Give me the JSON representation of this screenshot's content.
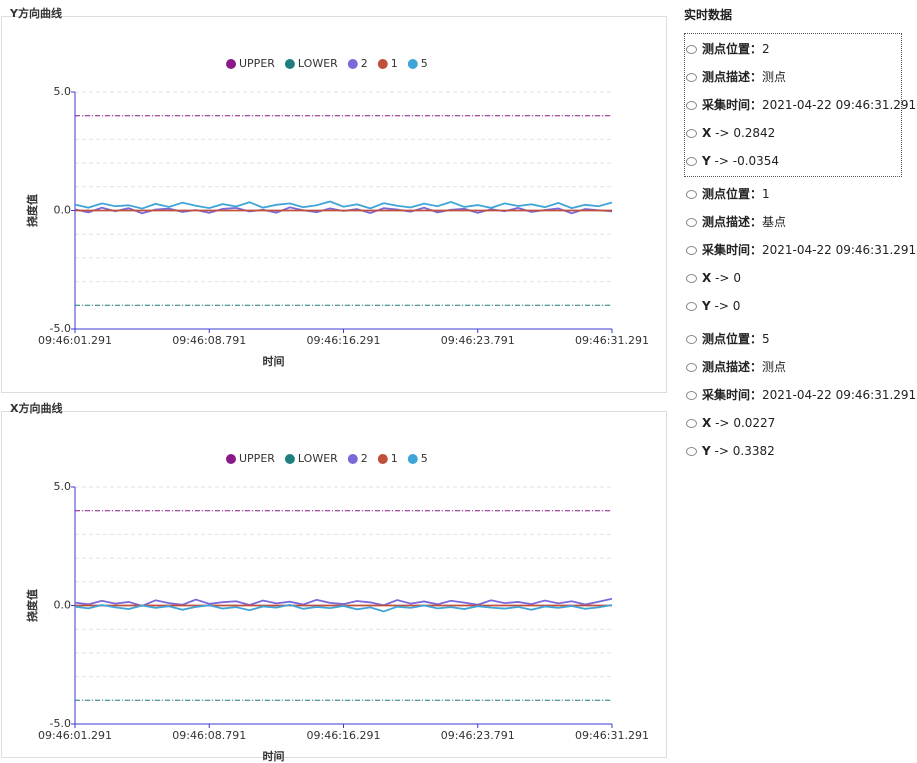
{
  "chart_data": [
    {
      "type": "line",
      "title": "Y方向曲线",
      "ylabel": "挠度值",
      "xlabel": "时间",
      "categories": [
        "09:46:01.291",
        null,
        null,
        null,
        null,
        null,
        null,
        null,
        null,
        null,
        "09:46:08.791",
        null,
        null,
        null,
        null,
        null,
        null,
        null,
        null,
        null,
        "09:46:16.291",
        null,
        null,
        null,
        null,
        null,
        null,
        null,
        null,
        null,
        "09:46:23.791",
        null,
        null,
        null,
        null,
        null,
        null,
        null,
        null,
        null,
        "09:46:31.291"
      ],
      "ylim": [
        -5,
        5
      ],
      "yticks": [
        {
          "value": -5,
          "label": "-5.0"
        },
        {
          "value": 0,
          "label": "0.0"
        },
        {
          "value": 5,
          "label": "5.0"
        }
      ],
      "minor_yticks": [
        -4,
        -3,
        -2,
        -1,
        1,
        2,
        3,
        4
      ],
      "grid": true,
      "series": [
        {
          "name": "UPPER",
          "color": "#8a1a8a",
          "style": "dash-dot",
          "values": [
            4,
            4,
            4,
            4,
            4,
            4,
            4,
            4,
            4,
            4,
            4,
            4,
            4,
            4,
            4,
            4,
            4,
            4,
            4,
            4,
            4,
            4,
            4,
            4,
            4,
            4,
            4,
            4,
            4,
            4,
            4,
            4,
            4,
            4,
            4,
            4,
            4,
            4,
            4,
            4,
            4
          ]
        },
        {
          "name": "LOWER",
          "color": "#1f7f7f",
          "style": "dash-dot",
          "values": [
            -4,
            -4,
            -4,
            -4,
            -4,
            -4,
            -4,
            -4,
            -4,
            -4,
            -4,
            -4,
            -4,
            -4,
            -4,
            -4,
            -4,
            -4,
            -4,
            -4,
            -4,
            -4,
            -4,
            -4,
            -4,
            -4,
            -4,
            -4,
            -4,
            -4,
            -4,
            -4,
            -4,
            -4,
            -4,
            -4,
            -4,
            -4,
            -4,
            -4,
            -4
          ]
        },
        {
          "name": "2",
          "color": "#7b68d8",
          "values": [
            0.05,
            -0.08,
            0.12,
            -0.03,
            0.1,
            -0.12,
            0.04,
            0.08,
            -0.06,
            0.02,
            -0.1,
            0.07,
            0.11,
            -0.04,
            0.03,
            -0.09,
            0.13,
            0.01,
            -0.07,
            0.09,
            -0.02,
            0.06,
            -0.11,
            0.1,
            0.04,
            -0.05,
            0.12,
            -0.08,
            0.03,
            0.07,
            -0.1,
            0.05,
            -0.03,
            0.11,
            -0.06,
            0.02,
            0.09,
            -0.12,
            0.06,
            0.01,
            -0.0354
          ]
        },
        {
          "name": "1",
          "color": "#c0503c",
          "values": [
            0,
            0,
            0,
            0,
            0,
            0,
            0,
            0,
            0,
            0,
            0,
            0,
            0,
            0,
            0,
            0,
            0,
            0,
            0,
            0,
            0,
            0,
            0,
            0,
            0,
            0,
            0,
            0,
            0,
            0,
            0,
            0,
            0,
            0,
            0,
            0,
            0,
            0,
            0,
            0,
            0
          ]
        },
        {
          "name": "5",
          "color": "#3fa5d8",
          "values": [
            0.25,
            0.12,
            0.3,
            0.18,
            0.22,
            0.08,
            0.28,
            0.15,
            0.33,
            0.2,
            0.1,
            0.27,
            0.17,
            0.35,
            0.12,
            0.24,
            0.3,
            0.14,
            0.22,
            0.38,
            0.16,
            0.26,
            0.09,
            0.31,
            0.2,
            0.13,
            0.29,
            0.18,
            0.36,
            0.15,
            0.23,
            0.11,
            0.3,
            0.19,
            0.26,
            0.14,
            0.32,
            0.1,
            0.24,
            0.18,
            0.3382
          ]
        }
      ]
    },
    {
      "type": "line",
      "title": "X方向曲线",
      "ylabel": "挠度值",
      "xlabel": "时间",
      "categories": [
        "09:46:01.291",
        null,
        null,
        null,
        null,
        null,
        null,
        null,
        null,
        null,
        "09:46:08.791",
        null,
        null,
        null,
        null,
        null,
        null,
        null,
        null,
        null,
        "09:46:16.291",
        null,
        null,
        null,
        null,
        null,
        null,
        null,
        null,
        null,
        "09:46:23.791",
        null,
        null,
        null,
        null,
        null,
        null,
        null,
        null,
        null,
        "09:46:31.291"
      ],
      "ylim": [
        -5,
        5
      ],
      "yticks": [
        {
          "value": -5,
          "label": "-5.0"
        },
        {
          "value": 0,
          "label": "0.0"
        },
        {
          "value": 5,
          "label": "5.0"
        }
      ],
      "minor_yticks": [
        -4,
        -3,
        -2,
        -1,
        1,
        2,
        3,
        4
      ],
      "grid": true,
      "series": [
        {
          "name": "UPPER",
          "color": "#8a1a8a",
          "style": "dash-dot",
          "values": [
            4,
            4,
            4,
            4,
            4,
            4,
            4,
            4,
            4,
            4,
            4,
            4,
            4,
            4,
            4,
            4,
            4,
            4,
            4,
            4,
            4,
            4,
            4,
            4,
            4,
            4,
            4,
            4,
            4,
            4,
            4,
            4,
            4,
            4,
            4,
            4,
            4,
            4,
            4,
            4,
            4
          ]
        },
        {
          "name": "LOWER",
          "color": "#1f7f7f",
          "style": "dash-dot",
          "values": [
            -4,
            -4,
            -4,
            -4,
            -4,
            -4,
            -4,
            -4,
            -4,
            -4,
            -4,
            -4,
            -4,
            -4,
            -4,
            -4,
            -4,
            -4,
            -4,
            -4,
            -4,
            -4,
            -4,
            -4,
            -4,
            -4,
            -4,
            -4,
            -4,
            -4,
            -4,
            -4,
            -4,
            -4,
            -4,
            -4,
            -4,
            -4,
            -4,
            -4,
            -4
          ]
        },
        {
          "name": "2",
          "color": "#7b68d8",
          "values": [
            0.12,
            0.05,
            0.2,
            0.08,
            0.15,
            -0.02,
            0.22,
            0.1,
            0.03,
            0.25,
            0.07,
            0.14,
            0.18,
            0.02,
            0.21,
            0.09,
            0.16,
            0.04,
            0.24,
            0.11,
            0.06,
            0.19,
            0.13,
            0.01,
            0.23,
            0.08,
            0.17,
            0.05,
            0.2,
            0.12,
            0.03,
            0.22,
            0.1,
            0.15,
            0.06,
            0.21,
            0.09,
            0.18,
            0.04,
            0.16,
            0.2842
          ]
        },
        {
          "name": "1",
          "color": "#c0503c",
          "values": [
            0,
            0,
            0,
            0,
            0,
            0,
            0,
            0,
            0,
            0,
            0,
            0,
            0,
            0,
            0,
            0,
            0,
            0,
            0,
            0,
            0,
            0,
            0,
            0,
            0,
            0,
            0,
            0,
            0,
            0,
            0,
            0,
            0,
            0,
            0,
            0,
            0,
            0,
            0,
            0,
            0
          ]
        },
        {
          "name": "5",
          "color": "#3fa5d8",
          "values": [
            -0.05,
            -0.12,
            0.02,
            -0.08,
            -0.15,
            0.0,
            -0.1,
            -0.03,
            -0.18,
            -0.06,
            0.01,
            -0.13,
            -0.07,
            -0.2,
            -0.04,
            -0.09,
            0.03,
            -0.14,
            -0.06,
            -0.11,
            -0.02,
            -0.16,
            -0.08,
            -0.25,
            -0.05,
            -0.1,
            0.0,
            -0.12,
            -0.07,
            -0.15,
            -0.03,
            -0.09,
            -0.13,
            -0.06,
            -0.18,
            -0.04,
            -0.1,
            -0.02,
            -0.14,
            -0.08,
            0.0227
          ]
        }
      ]
    }
  ],
  "panel": {
    "title": "实时数据",
    "groups": [
      {
        "rows": [
          {
            "label": "测点位置：",
            "value": 2
          },
          {
            "label": "测点描述：",
            "value": "测点"
          },
          {
            "label": "采集时间：",
            "value": "2021-04-22 09:46:31.291"
          },
          {
            "label": "X",
            "sep": "->",
            "value": 0.2842
          },
          {
            "label": "Y",
            "sep": "->",
            "value": -0.0354
          }
        ]
      },
      {
        "rows": [
          {
            "label": "测点位置：",
            "value": 1
          },
          {
            "label": "测点描述：",
            "value": "基点"
          },
          {
            "label": "采集时间：",
            "value": "2021-04-22 09:46:31.291"
          },
          {
            "label": "X",
            "sep": "->",
            "value": 0
          },
          {
            "label": "Y",
            "sep": "->",
            "value": 0
          }
        ]
      },
      {
        "rows": [
          {
            "label": "测点位置：",
            "value": 5
          },
          {
            "label": "测点描述：",
            "value": "测点"
          },
          {
            "label": "采集时间：",
            "value": "2021-04-22 09:46:31.291"
          },
          {
            "label": "X",
            "sep": "->",
            "value": 0.0227
          },
          {
            "label": "Y",
            "sep": "->",
            "value": 0.3382
          }
        ]
      }
    ]
  }
}
